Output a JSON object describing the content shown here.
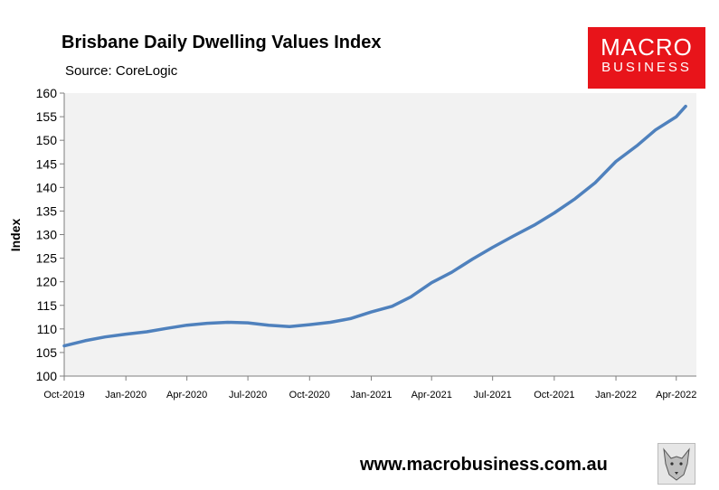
{
  "chart_data": {
    "type": "line",
    "title": "Brisbane Daily Dwelling Values Index",
    "subtitle": "Source: CoreLogic",
    "ylabel": "Index",
    "xlabel": "",
    "ylim": [
      100,
      160
    ],
    "y_ticks": [
      100,
      105,
      110,
      115,
      120,
      125,
      130,
      135,
      140,
      145,
      150,
      155,
      160
    ],
    "x_tick_labels": [
      "Oct-2019",
      "Jan-2020",
      "Apr-2020",
      "Jul-2020",
      "Oct-2020",
      "Jan-2021",
      "Apr-2021",
      "Jul-2021",
      "Oct-2021",
      "Jan-2022",
      "Apr-2022"
    ],
    "x_range": [
      "2019-10-01",
      "2022-05-01"
    ],
    "grid": false,
    "series": [
      {
        "color": "#4f81bd",
        "points": [
          [
            "2019-10-01",
            106.4
          ],
          [
            "2019-11-01",
            107.5
          ],
          [
            "2019-12-01",
            108.3
          ],
          [
            "2020-01-01",
            108.9
          ],
          [
            "2020-02-01",
            109.4
          ],
          [
            "2020-03-01",
            110.1
          ],
          [
            "2020-04-01",
            110.8
          ],
          [
            "2020-05-01",
            111.2
          ],
          [
            "2020-06-01",
            111.4
          ],
          [
            "2020-07-01",
            111.3
          ],
          [
            "2020-08-01",
            110.8
          ],
          [
            "2020-09-01",
            110.5
          ],
          [
            "2020-10-01",
            110.9
          ],
          [
            "2020-11-01",
            111.4
          ],
          [
            "2020-12-01",
            112.2
          ],
          [
            "2021-01-01",
            113.6
          ],
          [
            "2021-02-01",
            114.8
          ],
          [
            "2021-03-01",
            116.8
          ],
          [
            "2021-04-01",
            119.8
          ],
          [
            "2021-05-01",
            122.0
          ],
          [
            "2021-06-01",
            124.8
          ],
          [
            "2021-07-01",
            127.3
          ],
          [
            "2021-08-01",
            129.7
          ],
          [
            "2021-09-01",
            132.0
          ],
          [
            "2021-10-01",
            134.6
          ],
          [
            "2021-11-01",
            137.6
          ],
          [
            "2021-12-01",
            141.0
          ],
          [
            "2022-01-01",
            145.5
          ],
          [
            "2022-02-01",
            148.8
          ],
          [
            "2022-03-01",
            152.2
          ],
          [
            "2022-04-01",
            155.0
          ],
          [
            "2022-04-15",
            157.2
          ]
        ]
      }
    ]
  },
  "logo": {
    "line1": "MACRO",
    "line2": "BUSINESS"
  },
  "footer": {
    "website": "www.macrobusiness.com.au"
  },
  "icons": {
    "wolf": "wolf-logo-icon"
  }
}
